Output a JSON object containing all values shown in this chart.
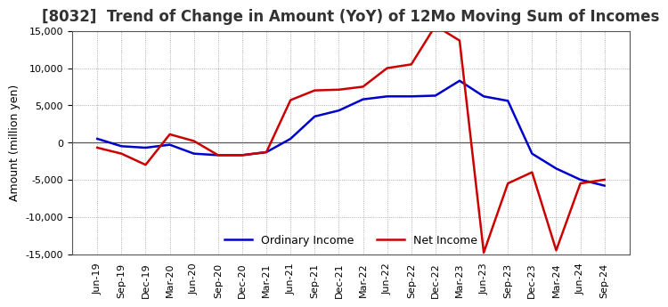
{
  "title": "[8032]  Trend of Change in Amount (YoY) of 12Mo Moving Sum of Incomes",
  "ylabel": "Amount (million yen)",
  "xlabels": [
    "Jun-19",
    "Sep-19",
    "Dec-19",
    "Mar-20",
    "Jun-20",
    "Sep-20",
    "Dec-20",
    "Mar-21",
    "Jun-21",
    "Sep-21",
    "Dec-21",
    "Mar-22",
    "Jun-22",
    "Sep-22",
    "Dec-22",
    "Mar-23",
    "Jun-23",
    "Sep-23",
    "Dec-23",
    "Mar-24",
    "Jun-24",
    "Sep-24"
  ],
  "ordinary_income": [
    500,
    -500,
    -700,
    -300,
    -1500,
    -1700,
    -1700,
    -1300,
    500,
    3500,
    4300,
    5800,
    6200,
    6200,
    6300,
    8300,
    6200,
    5600,
    -1500,
    -3500,
    -5000,
    -5800
  ],
  "net_income": [
    -700,
    -1500,
    -3000,
    1100,
    200,
    -1700,
    -1700,
    -1300,
    5700,
    7000,
    7100,
    7500,
    10000,
    10500,
    15700,
    13700,
    -14800,
    -5500,
    -4000,
    -14500,
    -5500,
    -5000
  ],
  "ordinary_income_color": "#0000cc",
  "net_income_color": "#cc0000",
  "ylim": [
    -15000,
    15000
  ],
  "yticks": [
    -15000,
    -10000,
    -5000,
    0,
    5000,
    10000,
    15000
  ],
  "background_color": "#ffffff",
  "grid_color": "#999999",
  "title_fontsize": 12,
  "label_fontsize": 9,
  "tick_fontsize": 8
}
